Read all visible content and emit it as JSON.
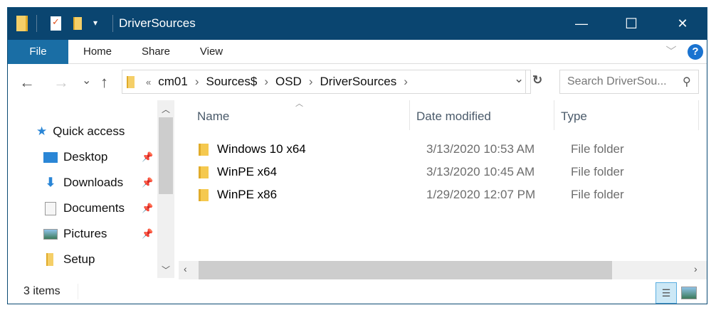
{
  "window": {
    "title": "DriverSources",
    "minimize": "—",
    "maximize": "☐",
    "close": "✕"
  },
  "ribbon": {
    "tabs": [
      "File",
      "Home",
      "Share",
      "View"
    ],
    "help": "?",
    "expand": "﹀"
  },
  "address": {
    "overflow": "«",
    "crumbs": [
      "cm01",
      "Sources$",
      "OSD",
      "DriverSources"
    ],
    "separator": "›",
    "dropdown": "⌄",
    "refresh": "↻"
  },
  "nav_buttons": {
    "back": "←",
    "forward": "→",
    "recent": "⌄",
    "up": "↑"
  },
  "search": {
    "placeholder": "Search DriverSou..."
  },
  "sidebar": {
    "items": [
      {
        "label": "Quick access",
        "icon": "star-icon",
        "pinned": false
      },
      {
        "label": "Desktop",
        "icon": "desktop-icon",
        "pinned": true
      },
      {
        "label": "Downloads",
        "icon": "download-icon",
        "pinned": true
      },
      {
        "label": "Documents",
        "icon": "documents-icon",
        "pinned": true
      },
      {
        "label": "Pictures",
        "icon": "pictures-icon",
        "pinned": true
      },
      {
        "label": "Setup",
        "icon": "folder-icon",
        "pinned": false
      }
    ]
  },
  "columns": [
    "Name",
    "Date modified",
    "Type"
  ],
  "files": [
    {
      "name": "Windows 10 x64",
      "date": "3/13/2020 10:53 AM",
      "type": "File folder"
    },
    {
      "name": "WinPE x64",
      "date": "3/13/2020 10:45 AM",
      "type": "File folder"
    },
    {
      "name": "WinPE x86",
      "date": "1/29/2020 12:07 PM",
      "type": "File folder"
    }
  ],
  "status": {
    "count": "3 items"
  },
  "colors": {
    "titlebar": "#0a4570",
    "file_tab": "#1a6ea5"
  }
}
